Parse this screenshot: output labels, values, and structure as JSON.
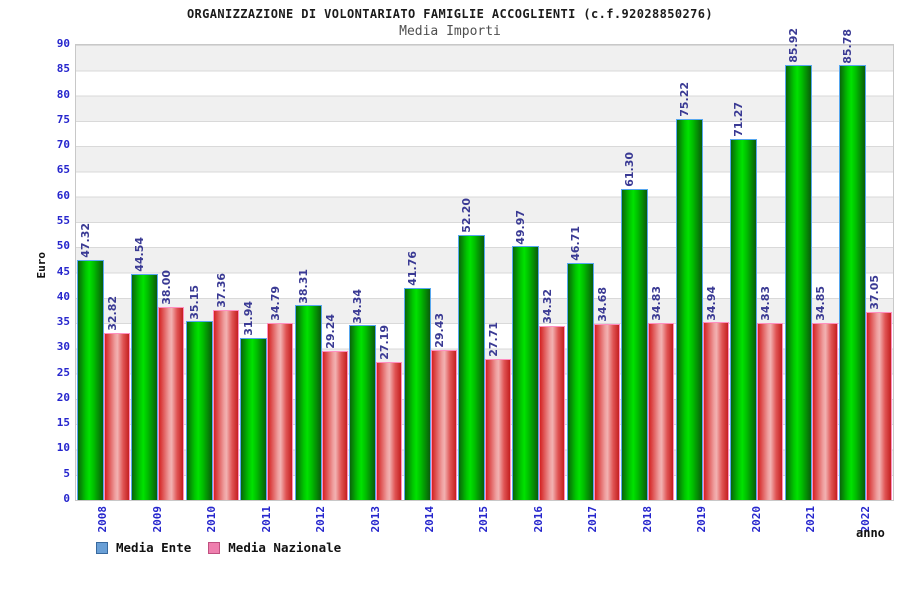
{
  "header": {
    "title": "ORGANIZZAZIONE DI VOLONTARIATO FAMIGLIE ACCOGLIENTI (c.f.92028850276)",
    "subtitle": "Media Importi"
  },
  "colors": {
    "green_bar": "#00c400",
    "green_bar_border": "#57a7ef",
    "red_bar": "#e05555",
    "red_bar_border": "#ff8fc0",
    "value_label": "#3a3a94",
    "axis_tick": "#2626cd",
    "band_gray": "#f0f0f0",
    "band_white": "#ffffff",
    "legend_ente_swatch": "#699fd6",
    "legend_nazionale_swatch": "#ef7fae"
  },
  "chart_data": {
    "type": "bar",
    "title": "ORGANIZZAZIONE DI VOLONTARIATO FAMIGLIE ACCOGLIENTI (c.f.92028850276)",
    "subtitle": "Media Importi",
    "xlabel": "anno",
    "ylabel": "Euro",
    "ylim": [
      0,
      90
    ],
    "ytick_step": 5,
    "yticks": [
      0,
      5,
      10,
      15,
      20,
      25,
      30,
      35,
      40,
      45,
      50,
      55,
      60,
      65,
      70,
      75,
      80,
      85,
      90
    ],
    "grid": "horizontal alternating bands, gridline every 5",
    "legend_position": "bottom-left",
    "categories": [
      "2008",
      "2009",
      "2010",
      "2011",
      "2012",
      "2013",
      "2014",
      "2015",
      "2016",
      "2017",
      "2018",
      "2019",
      "2020",
      "2021",
      "2022"
    ],
    "series": [
      {
        "name": "Media Ente",
        "color": "green",
        "values": [
          47.32,
          44.54,
          35.15,
          31.94,
          38.31,
          34.34,
          41.76,
          52.2,
          49.97,
          46.71,
          61.3,
          75.22,
          71.27,
          85.92,
          85.78
        ]
      },
      {
        "name": "Media Nazionale",
        "color": "red",
        "values": [
          32.82,
          38.0,
          37.36,
          34.79,
          29.24,
          27.19,
          29.43,
          27.71,
          34.32,
          34.68,
          34.83,
          34.94,
          34.83,
          34.85,
          37.05
        ]
      }
    ]
  }
}
